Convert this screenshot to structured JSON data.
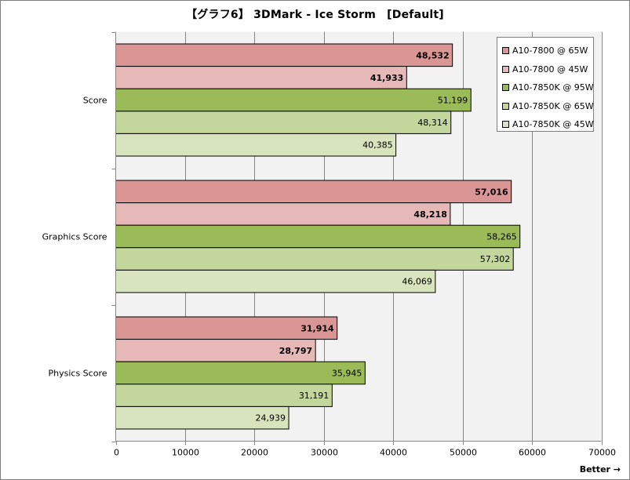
{
  "chart_data": {
    "type": "bar",
    "orientation": "horizontal",
    "title": "【グラフ6】 3DMark - Ice Storm　[Default]",
    "categories": [
      "Score",
      "Graphics Score",
      "Physics Score"
    ],
    "series": [
      {
        "name": "A10-7800 @ 65W",
        "color": "#da9694",
        "label_bold": true,
        "values": [
          48532,
          57016,
          31914
        ],
        "labels": [
          "48,532",
          "57,016",
          "31,914"
        ]
      },
      {
        "name": "A10-7800 @ 45W",
        "color": "#e6b9b8",
        "label_bold": true,
        "values": [
          41933,
          48218,
          28797
        ],
        "labels": [
          "41,933",
          "48,218",
          "28,797"
        ]
      },
      {
        "name": "A10-7850K @ 95W",
        "color": "#9bbb59",
        "label_bold": false,
        "values": [
          51199,
          58265,
          35945
        ],
        "labels": [
          "51,199",
          "58,265",
          "35,945"
        ]
      },
      {
        "name": "A10-7850K @ 65W",
        "color": "#c3d69b",
        "label_bold": false,
        "values": [
          48314,
          57302,
          31191
        ],
        "labels": [
          "48,314",
          "57,302",
          "31,191"
        ]
      },
      {
        "name": "A10-7850K @ 45W",
        "color": "#d7e4bd",
        "label_bold": false,
        "values": [
          40385,
          46069,
          24939
        ],
        "labels": [
          "40,385",
          "46,069",
          "24,939"
        ]
      }
    ],
    "xlim": [
      0,
      70000
    ],
    "xticks": [
      0,
      10000,
      20000,
      30000,
      40000,
      50000,
      60000,
      70000
    ],
    "xtick_labels": [
      "0",
      "10000",
      "20000",
      "30000",
      "40000",
      "50000",
      "60000",
      "70000"
    ],
    "grid": true,
    "legend_position": "top-right",
    "xlabel": "Better →"
  }
}
